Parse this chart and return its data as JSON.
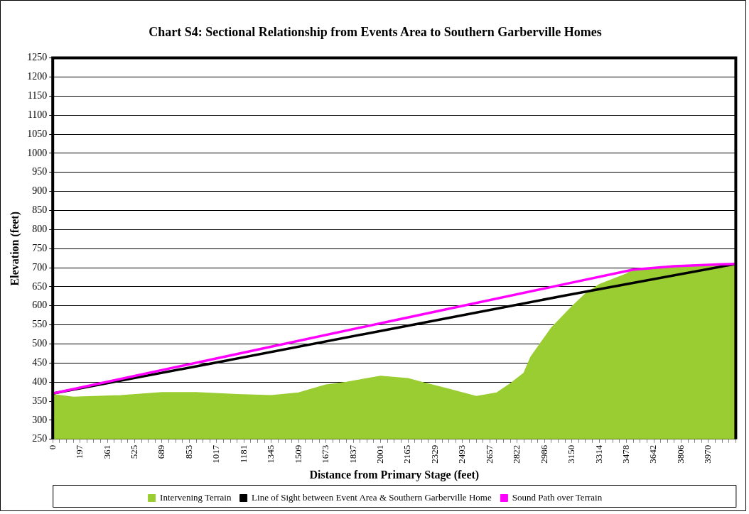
{
  "chart_data": {
    "type": "line",
    "title": "Chart S4: Sectional Relationship from Events Area to Southern Garberville Homes",
    "xlabel": "Distance from Primary Stage (feet)",
    "ylabel": "Elevation (feet)",
    "categories": [
      "0",
      null,
      null,
      null,
      "197",
      null,
      null,
      null,
      "361",
      null,
      null,
      null,
      "525",
      null,
      null,
      null,
      "689",
      null,
      null,
      null,
      "853",
      null,
      null,
      null,
      "1017",
      null,
      null,
      null,
      "1181",
      null,
      null,
      null,
      "1345",
      null,
      null,
      null,
      "1509",
      null,
      null,
      null,
      "1673",
      null,
      null,
      null,
      "1837",
      null,
      null,
      null,
      "2001",
      null,
      null,
      null,
      "2165",
      null,
      null,
      null,
      "2329",
      null,
      null,
      null,
      "2493",
      null,
      null,
      null,
      "2657",
      null,
      null,
      null,
      "2822",
      null,
      null,
      null,
      "2986",
      null,
      null,
      null,
      "3150",
      null,
      null,
      null,
      "3314",
      null,
      null,
      null,
      "3478",
      null,
      null,
      null,
      "3642",
      null,
      null,
      null,
      "3806",
      null,
      null,
      null,
      "3970",
      null,
      null,
      null,
      null
    ],
    "series": [
      {
        "name": "Intervening Terrain",
        "type": "area",
        "color": "#9acd32",
        "values": [
          367,
          null,
          null,
          360,
          null,
          null,
          null,
          null,
          null,
          null,
          364,
          null,
          null,
          null,
          null,
          null,
          372,
          null,
          null,
          null,
          null,
          372,
          null,
          null,
          null,
          null,
          null,
          367,
          null,
          null,
          null,
          null,
          364,
          null,
          null,
          null,
          371,
          null,
          null,
          null,
          392,
          null,
          null,
          399,
          null,
          null,
          null,
          null,
          415,
          null,
          null,
          null,
          409,
          null,
          399,
          null,
          null,
          null,
          381,
          null,
          null,
          null,
          362,
          null,
          null,
          371,
          null,
          395,
          null,
          423,
          465,
          null,
          null,
          541,
          null,
          null,
          597,
          null,
          631,
          null,
          655,
          null,
          null,
          null,
          683,
          695,
          null,
          null,
          null,
          null,
          null,
          704,
          null,
          null,
          null,
          null,
          null,
          null,
          709,
          null,
          710
        ]
      },
      {
        "name": "Line of Sight between Event Area & Southern Garberville Home",
        "type": "line",
        "color": "#000000",
        "values": [
          370,
          null,
          null,
          null,
          null,
          null,
          null,
          null,
          null,
          null,
          null,
          null,
          null,
          null,
          null,
          null,
          null,
          null,
          null,
          null,
          null,
          null,
          null,
          null,
          null,
          455,
          null,
          null,
          null,
          null,
          null,
          null,
          null,
          null,
          null,
          null,
          null,
          null,
          null,
          null,
          null,
          null,
          null,
          null,
          null,
          null,
          null,
          null,
          null,
          null,
          541,
          null,
          null,
          null,
          null,
          null,
          null,
          null,
          null,
          null,
          null,
          null,
          null,
          null,
          null,
          null,
          null,
          null,
          null,
          null,
          null,
          null,
          null,
          null,
          null,
          627,
          null,
          null,
          null,
          null,
          null,
          null,
          null,
          null,
          null,
          null,
          null,
          null,
          null,
          null,
          null,
          null,
          null,
          null,
          null,
          null,
          null,
          null,
          null,
          null,
          710
        ]
      },
      {
        "name": "Sound Path over Terrain",
        "type": "line",
        "color": "#ff00ff",
        "values": [
          370,
          null,
          null,
          null,
          null,
          null,
          null,
          null,
          null,
          null,
          null,
          null,
          null,
          null,
          null,
          null,
          null,
          null,
          null,
          null,
          null,
          null,
          null,
          null,
          null,
          466,
          null,
          null,
          null,
          null,
          null,
          null,
          null,
          null,
          null,
          null,
          null,
          null,
          null,
          null,
          null,
          null,
          null,
          null,
          null,
          null,
          null,
          null,
          null,
          null,
          562,
          null,
          null,
          null,
          null,
          null,
          null,
          null,
          null,
          null,
          null,
          null,
          null,
          null,
          null,
          null,
          null,
          null,
          null,
          null,
          null,
          null,
          null,
          null,
          null,
          657,
          null,
          null,
          null,
          null,
          null,
          null,
          null,
          null,
          null,
          695,
          null,
          null,
          null,
          null,
          null,
          704,
          null,
          null,
          null,
          null,
          null,
          null,
          709,
          null,
          710
        ]
      }
    ],
    "ylim": [
      250,
      1250
    ],
    "yticks": [
      250,
      300,
      350,
      400,
      450,
      500,
      550,
      600,
      650,
      700,
      750,
      800,
      850,
      900,
      950,
      1000,
      1050,
      1100,
      1150,
      1200,
      1250
    ],
    "grid": "y",
    "legend": "bottom",
    "marker": "none"
  }
}
